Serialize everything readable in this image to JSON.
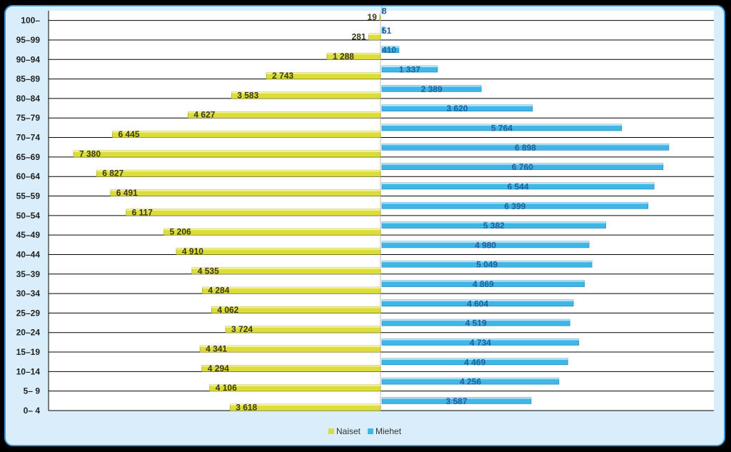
{
  "chart_data": {
    "type": "bar",
    "orientation": "population-pyramid",
    "categories": [
      "0– 4",
      "5– 9",
      "10–14",
      "15–19",
      "20–24",
      "25–29",
      "30–34",
      "35–39",
      "40–44",
      "45–49",
      "50–54",
      "55–59",
      "60–64",
      "65–69",
      "70–74",
      "75–79",
      "80–84",
      "85–89",
      "90–94",
      "95–99",
      "100–"
    ],
    "series": [
      {
        "name": "Naiset",
        "color": "#dcdc3a",
        "values": [
          3618,
          4106,
          4294,
          4341,
          3724,
          4062,
          4284,
          4535,
          4910,
          5206,
          6117,
          6491,
          6827,
          7380,
          6445,
          4627,
          3583,
          2743,
          1288,
          281,
          19
        ]
      },
      {
        "name": "Miehet",
        "color": "#3fb6e6",
        "values": [
          3587,
          4256,
          4469,
          4734,
          4519,
          4604,
          4869,
          5049,
          4980,
          5382,
          6399,
          6544,
          6760,
          6898,
          5764,
          3620,
          2389,
          1337,
          410,
          51,
          8
        ]
      }
    ],
    "data_labels": {
      "Naiset": [
        "3 618",
        "4 106",
        "4 294",
        "4 341",
        "3 724",
        "4 062",
        "4 284",
        "4 535",
        "4 910",
        "5 206",
        "6 117",
        "6 491",
        "6 827",
        "7 380",
        "6 445",
        "4 627",
        "3 583",
        "2 743",
        "1 288",
        "281",
        "19"
      ],
      "Miehet": [
        "3 587",
        "4 256",
        "4 469",
        "4 734",
        "4 519",
        "4 604",
        "4 869",
        "5 049",
        "4 980",
        "5 382",
        "6 399",
        "6 544",
        "6 760",
        "6 898",
        "5 764",
        "3 620",
        "2 389",
        "1 337",
        "410",
        "51",
        "8"
      ]
    },
    "legend": {
      "position": "bottom",
      "entries": [
        "Naiset",
        "Miehet"
      ]
    },
    "grid": true
  }
}
